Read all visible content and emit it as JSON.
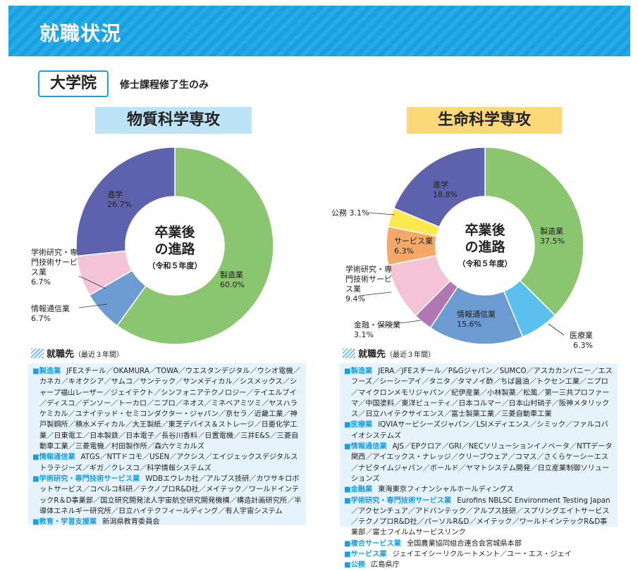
{
  "header": {
    "title": "就職状況"
  },
  "section": {
    "badge": "大学院",
    "note": "修士課程修了生のみ"
  },
  "center": {
    "title": "卒業後\nの進路",
    "line1": "卒業後",
    "line2": "の進路",
    "year": "（令和５年度）"
  },
  "dest_heading": "就職先",
  "dest_note": "（最近３年間）",
  "chart_data": [
    {
      "type": "pie",
      "title": "物質科学専攻",
      "slices": [
        {
          "label": "製造業",
          "value": 60.0,
          "display": "60.0%",
          "color": "#8cc56f"
        },
        {
          "label": "情報通信業",
          "value": 6.7,
          "display": "6.7%",
          "color": "#6c9bd2"
        },
        {
          "label": "学術研究・専門技術サービス業",
          "value": 6.7,
          "display": "6.7%",
          "color": "#f4c3d6"
        },
        {
          "label": "進学",
          "value": 26.7,
          "display": "26.7%",
          "color": "#5e62ad"
        }
      ]
    },
    {
      "type": "pie",
      "title": "生命科学専攻",
      "slices": [
        {
          "label": "製造業",
          "value": 37.5,
          "display": "37.5%",
          "color": "#8cc56f"
        },
        {
          "label": "医療業",
          "value": 6.3,
          "display": "6.3%",
          "color": "#5bc0ee"
        },
        {
          "label": "情報通信業",
          "value": 15.6,
          "display": "15.6%",
          "color": "#6c9bd2"
        },
        {
          "label": "金融・保険業",
          "value": 3.1,
          "display": "3.1%",
          "color": "#b077b2"
        },
        {
          "label": "学術研究・専門技術サービス業",
          "value": 9.4,
          "display": "9.4%",
          "color": "#f4c3d6"
        },
        {
          "label": "サービス業",
          "value": 6.3,
          "display": "6.3%",
          "color": "#f4a96a"
        },
        {
          "label": "公務",
          "value": 3.1,
          "display": "3.1%",
          "color": "#fbe94e"
        },
        {
          "label": "進学",
          "value": 18.8,
          "display": "18.8%",
          "color": "#5e62ad"
        }
      ]
    }
  ],
  "left_list": [
    {
      "cat": "■製造業",
      "text": "JFEスチール／OKAMURA／TOWA／ウエスタンデジタル／ウシオ電機／カネカ／キオクシア／サムコ／サンテック／サンメディカル／シスメックス／シャープ福山レーザー／ジェイテクト／シンフォニアテクノロジー／テイエルブイ／ディスコ／デンソー／トーカロ／ニプロ／ネオス／ミネベアミツミ／ヤスハラケミカル／ユナイテッド・セミコンダクター・ジャパン／京セラ／近畿工業／神戸製鋼所／積水メディカル／大王製紙／東芝デバイス＆ストレージ／日亜化学工業／日東電工／日本製鉄／日本電子／長谷川香料／日置電機／三井E&S／三菱自動車工業／三菱電機／村田製作所／森六ケミカルズ"
    },
    {
      "cat": "■情報通信業",
      "text": "ATGS／NTTドコモ／USEN／アクシス／エイジェックスデジタルストラテジーズ／ギガ／クレスコ／科学情報システムズ"
    },
    {
      "cat": "■学術研究・専門技術サービス業",
      "text": "WDBエウレカ社／アルプス技研／カワサキロボットサービス／コベルコ科研／テクノプロR&D社／メイテック／ワールドインテックR＆D事業部／国立研究開発法人宇宙航空研究開発機構／構造計画研究所／半導体エネルギー研究所／日立ハイテクフィールディング／有人宇宙システム"
    },
    {
      "cat": "■教育・学習支援業",
      "text": "新潟県教育委員会"
    }
  ],
  "right_list": [
    {
      "cat": "■製造業",
      "text": "JERA／JFEスチール／P&Gジャパン／SUMCO／アスカカンパニー／エスフーズ／シーシーアイ／タニタ／タマノイ酢／ちば醤油／トクセン工業／ニプロ／マイクロンメモリジャパン／紀伊産業／小林製薬／松風／第一三共プロファーマ／中国塗料／東洋ビューティ／日本コルマー／日本山村硝子／阪神メタリックス／日立ハイテクサイエンス／富士製薬工業／三菱自動車工業"
    },
    {
      "cat": "■医療業",
      "text": "IQVIAサービシーズジャパン／LSIメディエンス／シミック／ファルコバイオシステムズ"
    },
    {
      "cat": "■情報通信業",
      "text": "AJS／EPクロア／GRI／NECソリューションイノベータ／NTTデータ関西／アイエックス・ナレッジ／クリーブウェア／コマス／さくらケーシーエス／ナビタイムジャパン／ボールド／ヤマトシステム開発／日立産業制御ソリューションズ"
    },
    {
      "cat": "■金融業",
      "text": "東海東京フィナンシャルホールディングス"
    },
    {
      "cat": "■学術研究・専門技術サービス業",
      "text": "Eurofins NBLSC Environment Testing Japan／アクセンチュア／アドバンテック／アルプス技研／スプリングエイトサービス／テクノプロR&D社／パーソルR&D／メイテック／ワールドインテックR&D事業部／富士フイルムサービスリンク"
    },
    {
      "cat": "■複合サービス業",
      "text": "全国農業協同組合連合会宮城県本部"
    },
    {
      "cat": "■サービス業",
      "text": "ジェイエイシーリクルートメント／ユー・エス・ジェイ"
    },
    {
      "cat": "■公務",
      "text": "広島県庁"
    }
  ]
}
